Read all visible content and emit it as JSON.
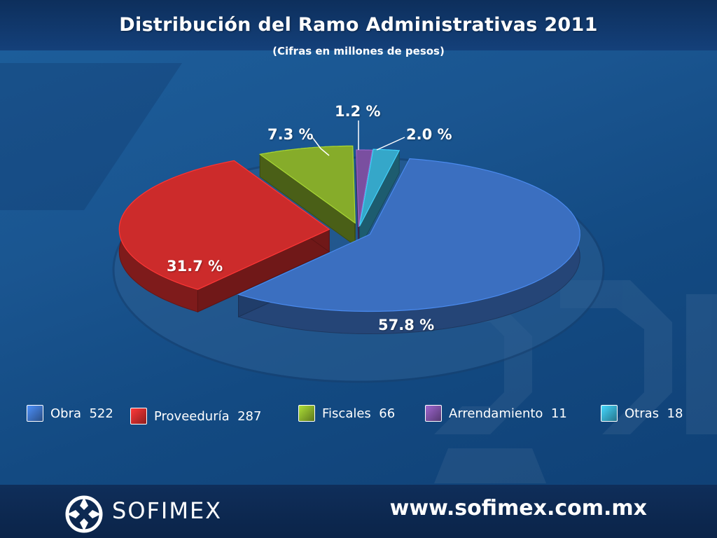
{
  "slide": {
    "title": "Distribución del Ramo Administrativas 2011",
    "subtitle": "(Cifras en millones de pesos)"
  },
  "chart_data": {
    "type": "pie",
    "title": "Distribución del Ramo Administrativas 2011",
    "subtitle": "(Cifras en millones de pesos)",
    "categories": [
      "Obra",
      "Proveeduría",
      "Fiscales",
      "Arrendamiento",
      "Otras"
    ],
    "values": [
      522,
      287,
      66,
      11,
      18
    ],
    "percent_labels": [
      "57.8 %",
      "31.7 %",
      "7.3 %",
      "1.2 %",
      "2.0 %"
    ],
    "colors": [
      "#3b6fc0",
      "#cc2b2b",
      "#86ac2a",
      "#7a4fa0",
      "#35a7c9"
    ],
    "legend": [
      {
        "name": "Obra",
        "value": "522",
        "color": "#3b6fc0"
      },
      {
        "name": "Proveeduría",
        "value": "287",
        "color": "#cc2b2b"
      },
      {
        "name": "Fiscales",
        "value": "66",
        "color": "#86ac2a"
      },
      {
        "name": "Arrendamiento",
        "value": "11",
        "color": "#7a4fa0"
      },
      {
        "name": "Otras",
        "value": "18",
        "color": "#35a7c9"
      }
    ],
    "legend_position": "bottom"
  },
  "footer": {
    "brand": "SOFIMEX",
    "website": "www.sofimex.com.mx"
  }
}
